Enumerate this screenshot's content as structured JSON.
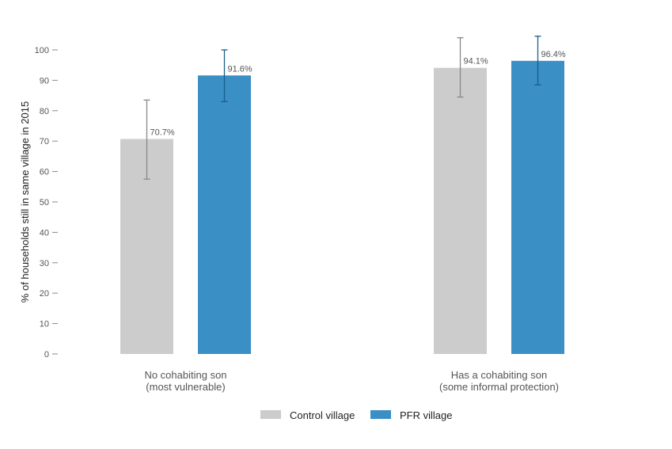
{
  "chart_data": {
    "type": "bar",
    "ylabel": "% of households still in same village in 2015",
    "ylim": [
      0,
      100
    ],
    "yticks": [
      0,
      10,
      20,
      30,
      40,
      50,
      60,
      70,
      80,
      90,
      100
    ],
    "categories": [
      [
        "No cohabiting son",
        "(most vulnerable)"
      ],
      [
        "Has a cohabiting son",
        "(some informal protection)"
      ]
    ],
    "series": [
      {
        "name": "Control village",
        "color": "#cccccc",
        "error_color": "#888888",
        "values": [
          70.7,
          94.1
        ],
        "labels": [
          "70.7%",
          "94.1%"
        ],
        "error_low": [
          57.5,
          84.5
        ],
        "error_high": [
          83.5,
          104
        ]
      },
      {
        "name": "PFR village",
        "color": "#3a8fc5",
        "error_color": "#1a5e8c",
        "values": [
          91.6,
          96.4
        ],
        "labels": [
          "91.6%",
          "96.4%"
        ],
        "error_low": [
          83,
          88.5
        ],
        "error_high": [
          100,
          104.5
        ]
      }
    ],
    "legend": "bottom",
    "grid": false
  }
}
